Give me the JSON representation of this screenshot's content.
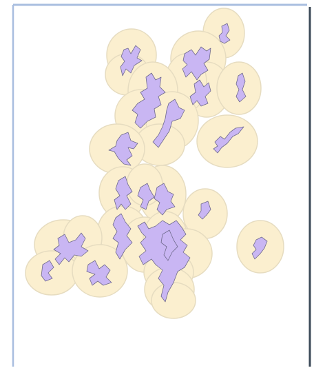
{
  "map": {
    "colors": {
      "buffer_fill": "#fbefcf",
      "buffer_stroke": "#e6dcc0",
      "feature_fill": "#c9b6f3",
      "feature_stroke": "#6f6a8c",
      "frame_left": "#a9bedf",
      "frame_top": "#a9bedf",
      "frame_right": "#3c4a58",
      "background": "#ffffff"
    },
    "layers": [
      "buffer-zones",
      "features"
    ]
  }
}
